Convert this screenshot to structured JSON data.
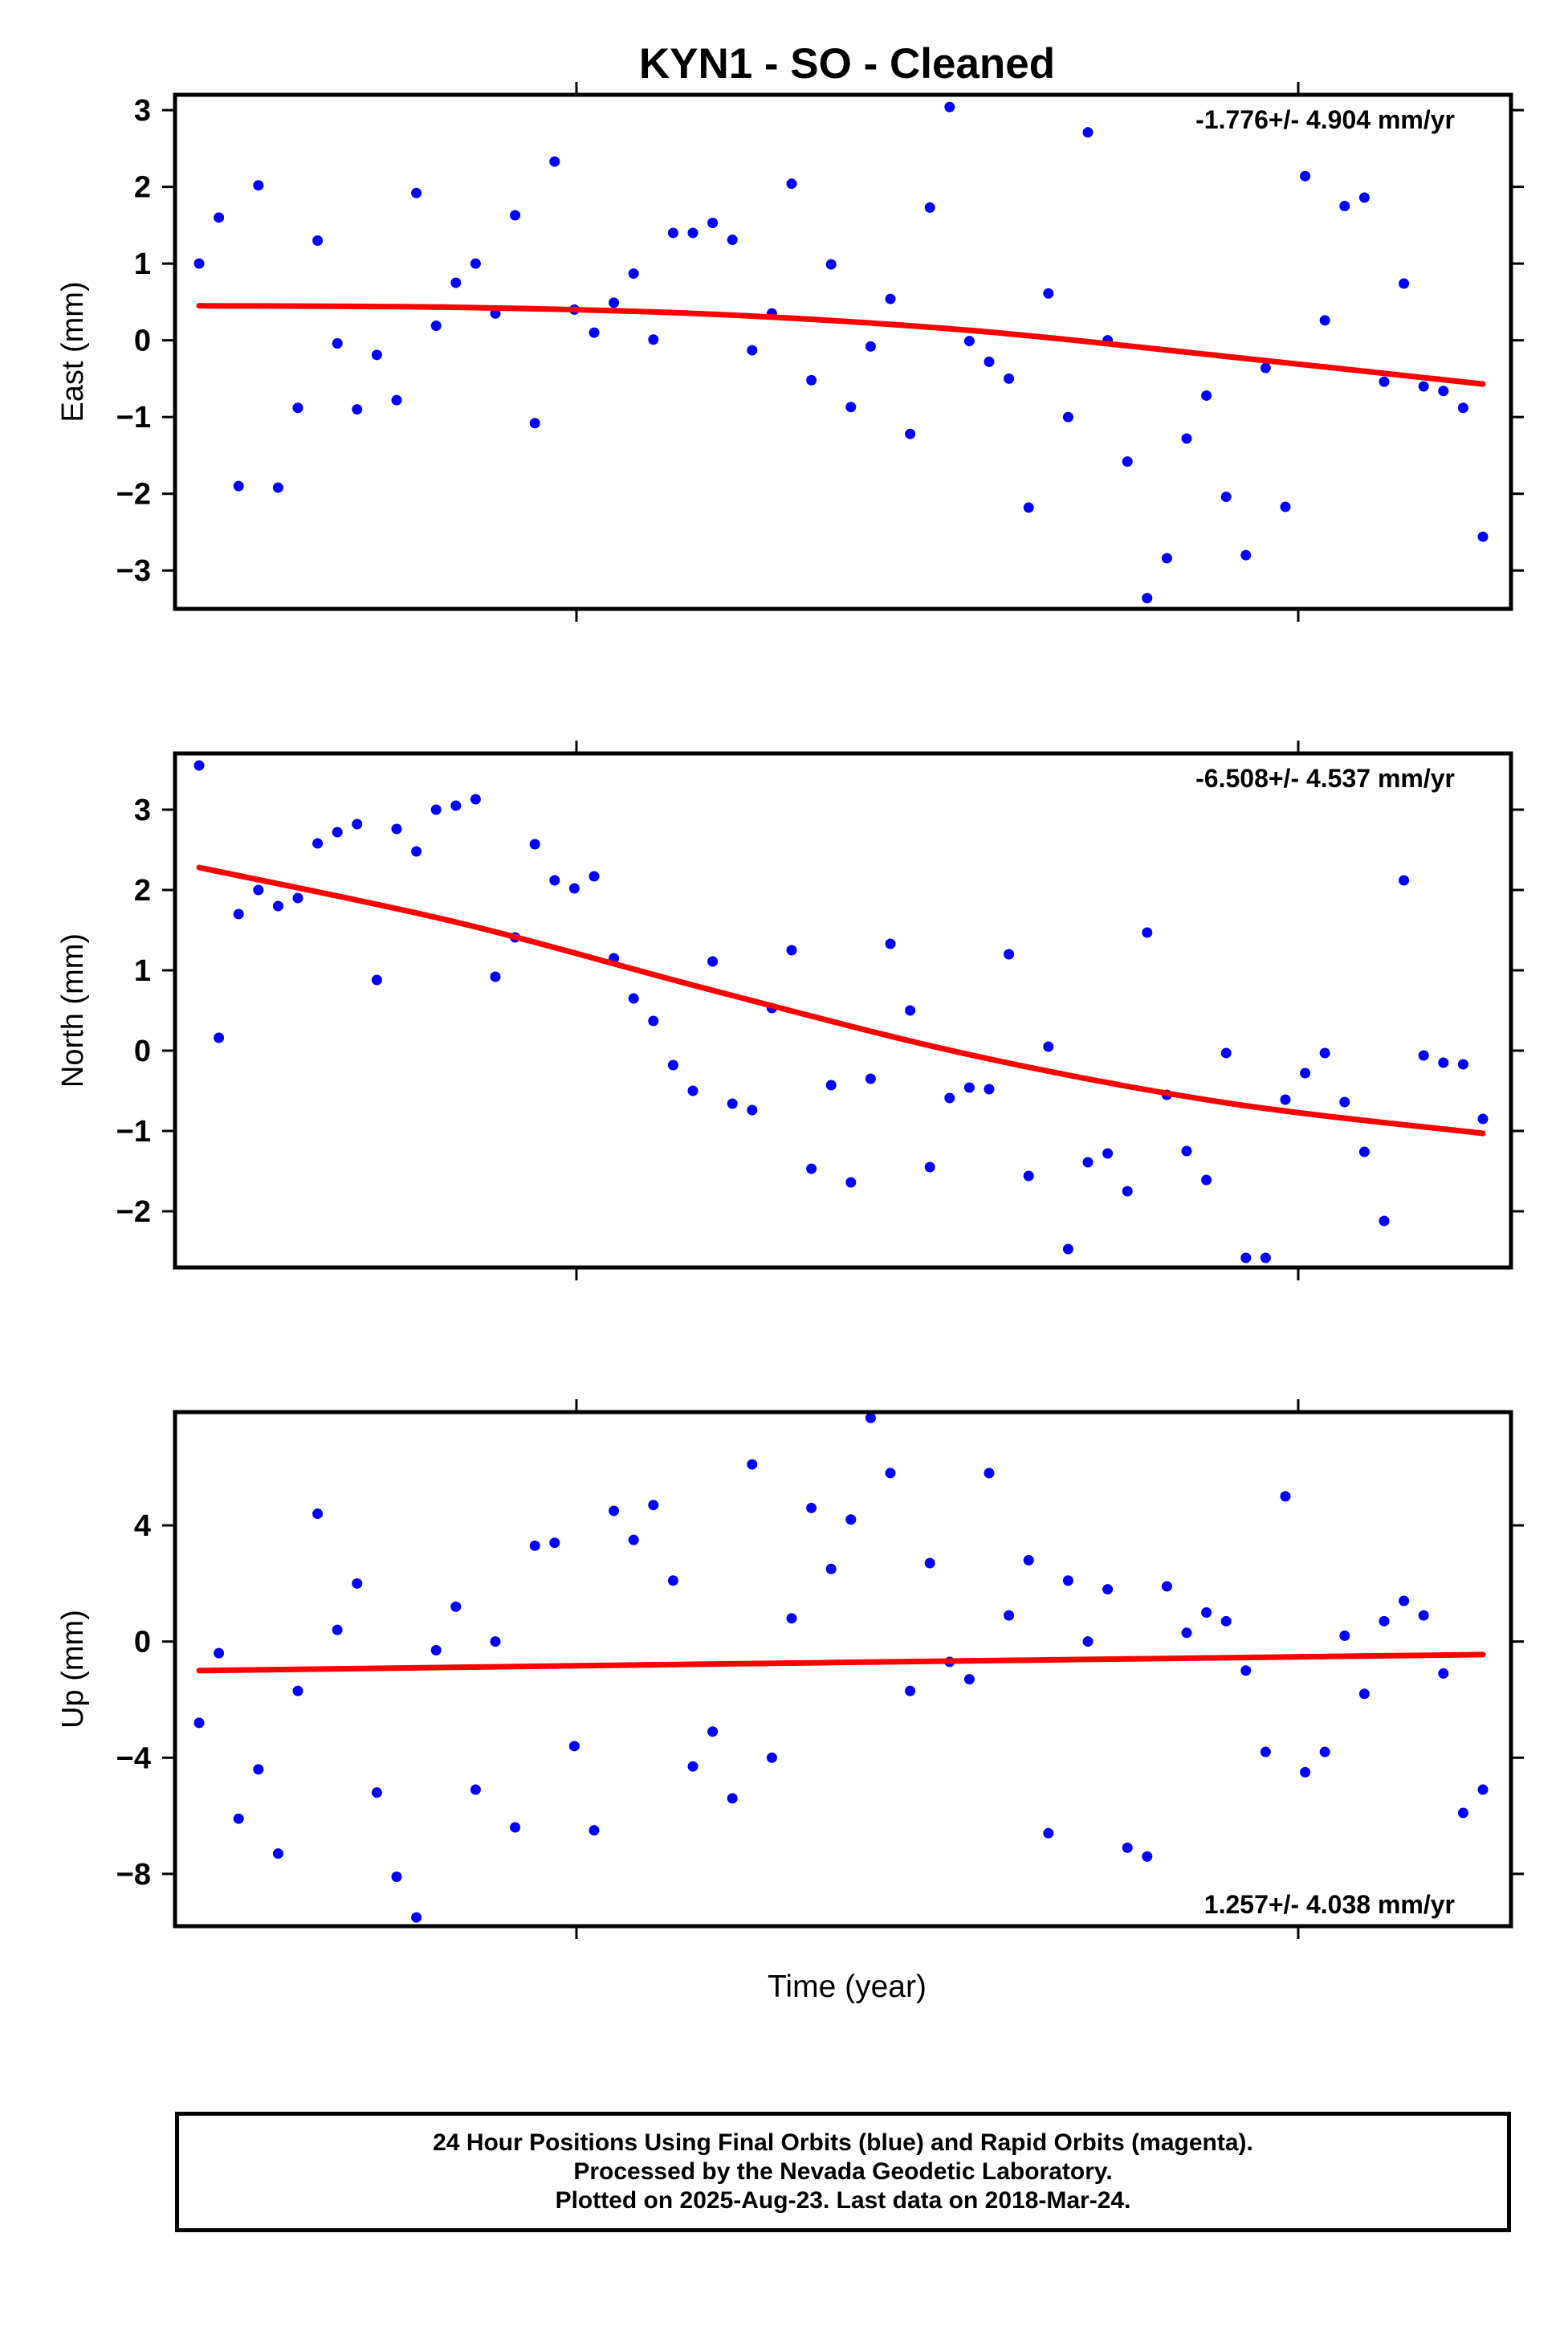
{
  "title": "KYN1  - SO - Cleaned",
  "xlabel": "Time (year)",
  "colors": {
    "points": "#0000ff",
    "fit": "#ff0000",
    "frame": "#000000"
  },
  "notes": [
    "24 Hour Positions Using Final Orbits (blue) and Rapid Orbits (magenta).",
    "Processed by the Nevada Geodetic Laboratory.",
    "Plotted on 2025-Aug-23. Last data on 2018-Mar-24."
  ],
  "chart_data": [
    {
      "type": "scatter",
      "ylabel": "East (mm)",
      "rate_label": "-1.776+/- 4.904 mm/yr",
      "rate_position": "top-right",
      "ylim": [
        -3.5,
        3.2
      ],
      "yticks": [
        3,
        2,
        1,
        0,
        -1,
        -2,
        -3
      ],
      "ytick_labels": [
        "3",
        "2",
        "1",
        "0",
        "−1",
        "−2",
        "−3"
      ],
      "series": [
        {
          "values": [
            1.0,
            1.6,
            -1.9,
            2.02,
            -1.92,
            -0.88,
            1.3,
            -0.04,
            -0.9,
            -0.19,
            -0.78,
            1.92,
            0.19,
            0.75,
            1.0,
            0.35,
            1.63,
            -1.08,
            2.33,
            0.4,
            0.1,
            0.49,
            0.87,
            0.01,
            1.4,
            1.4,
            1.53,
            1.31,
            -0.13,
            0.35,
            2.04,
            -0.52,
            0.99,
            -0.87,
            -0.08,
            0.54,
            -1.22,
            1.73,
            3.04,
            -0.01,
            -0.28,
            -0.5,
            -2.18,
            0.61,
            -1.0,
            2.71,
            0.0,
            -1.58,
            -3.36,
            -2.84,
            -1.28,
            -0.72,
            -2.04,
            -2.8,
            -0.36,
            -2.17,
            2.14,
            0.26,
            1.75,
            1.86,
            -0.54,
            0.74,
            -0.6,
            -0.66,
            -0.88,
            -2.56
          ]
        }
      ],
      "fit": [
        [
          0,
          0.45
        ],
        [
          0.2,
          0.43
        ],
        [
          0.4,
          0.34
        ],
        [
          0.6,
          0.13
        ],
        [
          0.8,
          -0.21
        ],
        [
          1.0,
          -0.57
        ]
      ]
    },
    {
      "type": "scatter",
      "ylabel": "North (mm)",
      "rate_label": "-6.508+/- 4.537 mm/yr",
      "rate_position": "top-right",
      "ylim": [
        -2.7,
        3.7
      ],
      "yticks": [
        3,
        2,
        1,
        0,
        -1,
        -2
      ],
      "ytick_labels": [
        "3",
        "2",
        "1",
        "0",
        "−1",
        "−2"
      ],
      "series": [
        {
          "values": [
            3.55,
            0.16,
            1.7,
            2.0,
            1.8,
            1.9,
            2.58,
            2.72,
            2.82,
            0.88,
            2.76,
            2.48,
            3.0,
            3.05,
            3.13,
            0.92,
            1.41,
            2.57,
            2.12,
            2.02,
            2.17,
            1.15,
            0.65,
            0.37,
            -0.18,
            -0.5,
            1.11,
            -0.66,
            -0.74,
            0.53,
            1.25,
            -1.47,
            -0.43,
            -1.64,
            -0.35,
            1.33,
            0.5,
            -1.45,
            -0.59,
            -0.46,
            -0.48,
            1.2,
            -1.56,
            0.05,
            -2.47,
            -1.39,
            -1.28,
            -1.75,
            1.47,
            -0.55,
            -1.25,
            -1.61,
            -0.03,
            -2.58,
            -2.58,
            -0.61,
            -0.28,
            -0.03,
            -0.64,
            -1.26,
            -2.12,
            2.12,
            -0.06,
            -0.15,
            -0.17,
            -0.85
          ]
        }
      ],
      "fit": [
        [
          0,
          2.28
        ],
        [
          0.2,
          1.6
        ],
        [
          0.4,
          0.75
        ],
        [
          0.6,
          -0.05
        ],
        [
          0.8,
          -0.65
        ],
        [
          1.0,
          -1.03
        ]
      ]
    },
    {
      "type": "scatter",
      "ylabel": "Up (mm)",
      "rate_label": "1.257+/- 4.038 mm/yr",
      "rate_position": "bottom-right",
      "ylim": [
        -9.8,
        7.9
      ],
      "yticks": [
        4,
        0,
        -4,
        -8
      ],
      "ytick_labels": [
        "4",
        "0",
        "−4",
        "−8"
      ],
      "series": [
        {
          "values": [
            -2.8,
            -0.4,
            -6.1,
            -4.4,
            -7.3,
            -1.7,
            4.4,
            0.4,
            2.0,
            -5.2,
            -8.1,
            -9.5,
            -0.3,
            1.2,
            -5.1,
            0.0,
            -6.4,
            3.3,
            3.4,
            -3.6,
            -6.5,
            4.5,
            3.5,
            4.7,
            2.1,
            -4.3,
            -3.1,
            -5.4,
            6.1,
            -4.0,
            0.8,
            4.6,
            2.5,
            4.2,
            7.7,
            5.8,
            -1.7,
            2.7,
            -0.7,
            -1.3,
            5.8,
            0.9,
            2.8,
            -6.6,
            2.1,
            0.0,
            1.8,
            -7.1,
            -7.4,
            1.9,
            0.3,
            1.0,
            0.7,
            -1.0,
            -3.8,
            5.0,
            -4.5,
            -3.8,
            0.2,
            -1.8,
            0.7,
            1.4,
            0.9,
            -1.1,
            -5.9,
            -5.1
          ]
        }
      ],
      "fit": [
        [
          0,
          -1.0
        ],
        [
          0.5,
          -0.72
        ],
        [
          1.0,
          -0.45
        ]
      ]
    }
  ]
}
